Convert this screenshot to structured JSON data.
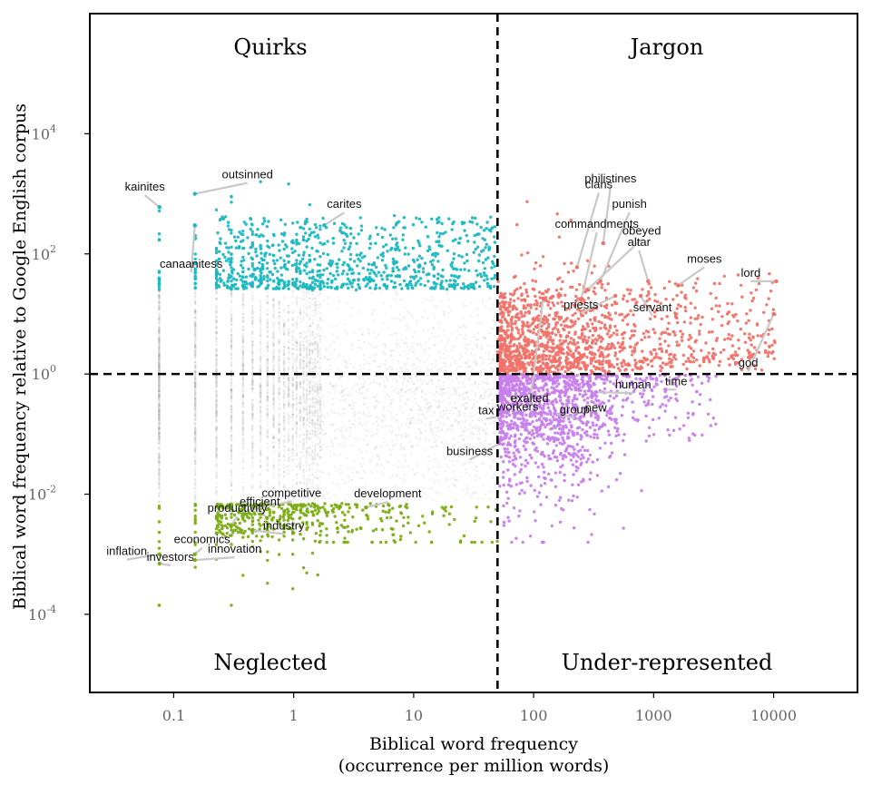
{
  "chart_data": {
    "type": "scatter",
    "x_scale": "log10",
    "y_scale": "log10",
    "xlabel_line1": "Biblical word frequency",
    "xlabel_line2": "(occurrence per million words)",
    "ylabel": "Biblical word frequency relative to Google English corpus",
    "xlim": [
      0.02,
      50000
    ],
    "ylim": [
      5e-06,
      1000000
    ],
    "x_ticks": [
      {
        "value": 0.1,
        "label": "0.1"
      },
      {
        "value": 1,
        "label": "1"
      },
      {
        "value": 10,
        "label": "10"
      },
      {
        "value": 100,
        "label": "100"
      },
      {
        "value": 1000,
        "label": "1000"
      },
      {
        "value": 10000,
        "label": "10000"
      }
    ],
    "y_ticks": [
      {
        "value": 0.0001,
        "base": "10",
        "exp": "-4"
      },
      {
        "value": 0.01,
        "base": "10",
        "exp": "-2"
      },
      {
        "value": 1,
        "base": "10",
        "exp": "0"
      },
      {
        "value": 100,
        "base": "10",
        "exp": "2"
      },
      {
        "value": 10000,
        "base": "10",
        "exp": "4"
      }
    ],
    "x_threshold": 50,
    "y_threshold": 1,
    "quadrants": {
      "top_left": "Quirks",
      "top_right": "Jargon",
      "bottom_left": "Neglected",
      "bottom_right": "Under-represented"
    },
    "colors": {
      "quirks": "#1cb8c1",
      "jargon": "#f0736a",
      "under": "#c780ec",
      "neglected": "#7cad16",
      "background": "#9a9a9a",
      "leader": "#c8c8c8",
      "threshold_line": "#000000"
    },
    "labeled_points": [
      {
        "word": "kainites",
        "x": 0.076,
        "y": 600,
        "group": "quirks"
      },
      {
        "word": "outsinned",
        "x": 0.15,
        "y": 1000,
        "group": "quirks"
      },
      {
        "word": "canaanitess",
        "x": 0.15,
        "y": 300,
        "group": "quirks"
      },
      {
        "word": "carites",
        "x": 1.8,
        "y": 300,
        "group": "quirks"
      },
      {
        "word": "philistines",
        "x": 380,
        "y": 150,
        "group": "jargon"
      },
      {
        "word": "exalted",
        "x": 120,
        "y": 18,
        "group": "jargon"
      },
      {
        "word": "clans",
        "x": 230,
        "y": 60,
        "group": "jargon"
      },
      {
        "word": "punish",
        "x": 360,
        "y": 35,
        "group": "jargon"
      },
      {
        "word": "obeyed",
        "x": 280,
        "y": 25,
        "group": "jargon"
      },
      {
        "word": "commandments",
        "x": 250,
        "y": 18,
        "group": "jargon"
      },
      {
        "word": "altar",
        "x": 900,
        "y": 35,
        "group": "jargon"
      },
      {
        "word": "moses",
        "x": 1600,
        "y": 30,
        "group": "jargon"
      },
      {
        "word": "priests",
        "x": 480,
        "y": 20,
        "group": "jargon"
      },
      {
        "word": "servant",
        "x": 780,
        "y": 20,
        "group": "jargon"
      },
      {
        "word": "lord",
        "x": 10500,
        "y": 35,
        "group": "jargon"
      },
      {
        "word": "god",
        "x": 10000,
        "y": 10,
        "group": "jargon"
      },
      {
        "word": "time",
        "x": 1250,
        "y": 0.55,
        "group": "under"
      },
      {
        "word": "human",
        "x": 330,
        "y": 0.5,
        "group": "under"
      },
      {
        "word": "new",
        "x": 330,
        "y": 0.22,
        "group": "under"
      },
      {
        "word": "group",
        "x": 150,
        "y": 0.22,
        "group": "under"
      },
      {
        "word": "workers",
        "x": 70,
        "y": 0.22,
        "group": "under"
      },
      {
        "word": "tax",
        "x": 55,
        "y": 0.2,
        "group": "under"
      },
      {
        "word": "business",
        "x": 52,
        "y": 0.07,
        "group": "under"
      },
      {
        "word": "competitive",
        "x": 0.35,
        "y": 0.005,
        "group": "neglected"
      },
      {
        "word": "development",
        "x": 4,
        "y": 0.006,
        "group": "neglected"
      },
      {
        "word": "efficient",
        "x": 0.6,
        "y": 0.004,
        "group": "neglected"
      },
      {
        "word": "productivity",
        "x": 0.3,
        "y": 0.003,
        "group": "neglected"
      },
      {
        "word": "industry",
        "x": 0.45,
        "y": 0.0025,
        "group": "neglected"
      },
      {
        "word": "inflation",
        "x": 0.076,
        "y": 0.001,
        "group": "neglected"
      },
      {
        "word": "investors",
        "x": 0.076,
        "y": 0.0007,
        "group": "neglected"
      },
      {
        "word": "economics",
        "x": 0.15,
        "y": 0.001,
        "group": "neglected"
      },
      {
        "word": "innovation",
        "x": 0.15,
        "y": 0.0008,
        "group": "neglected"
      }
    ]
  }
}
